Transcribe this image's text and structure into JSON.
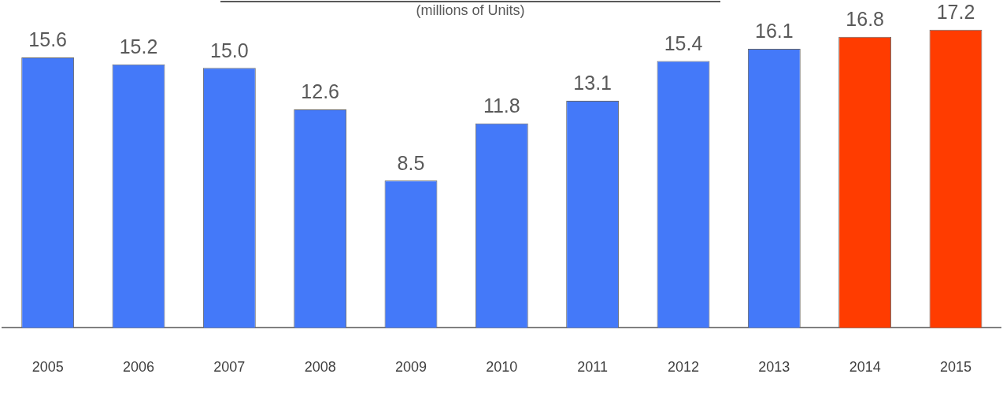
{
  "chart_data": {
    "type": "bar",
    "subtitle": "(millions of Units)",
    "categories": [
      "2005",
      "2006",
      "2007",
      "2008",
      "2009",
      "2010",
      "2011",
      "2012",
      "2013",
      "2014",
      "2015"
    ],
    "values": [
      15.6,
      15.2,
      15.0,
      12.6,
      8.5,
      11.8,
      13.1,
      15.4,
      16.1,
      16.8,
      17.2
    ],
    "colors": [
      "#4479f9",
      "#4479f9",
      "#4479f9",
      "#4479f9",
      "#4479f9",
      "#4479f9",
      "#4479f9",
      "#4479f9",
      "#4479f9",
      "#ff3c00",
      "#ff3c00"
    ],
    "value_labels": [
      "15.6",
      "15.2",
      "15.0",
      "12.6",
      "8.5",
      "11.8",
      "13.1",
      "15.4",
      "16.1",
      "16.8",
      "17.2"
    ],
    "grid": false,
    "legend": false
  }
}
